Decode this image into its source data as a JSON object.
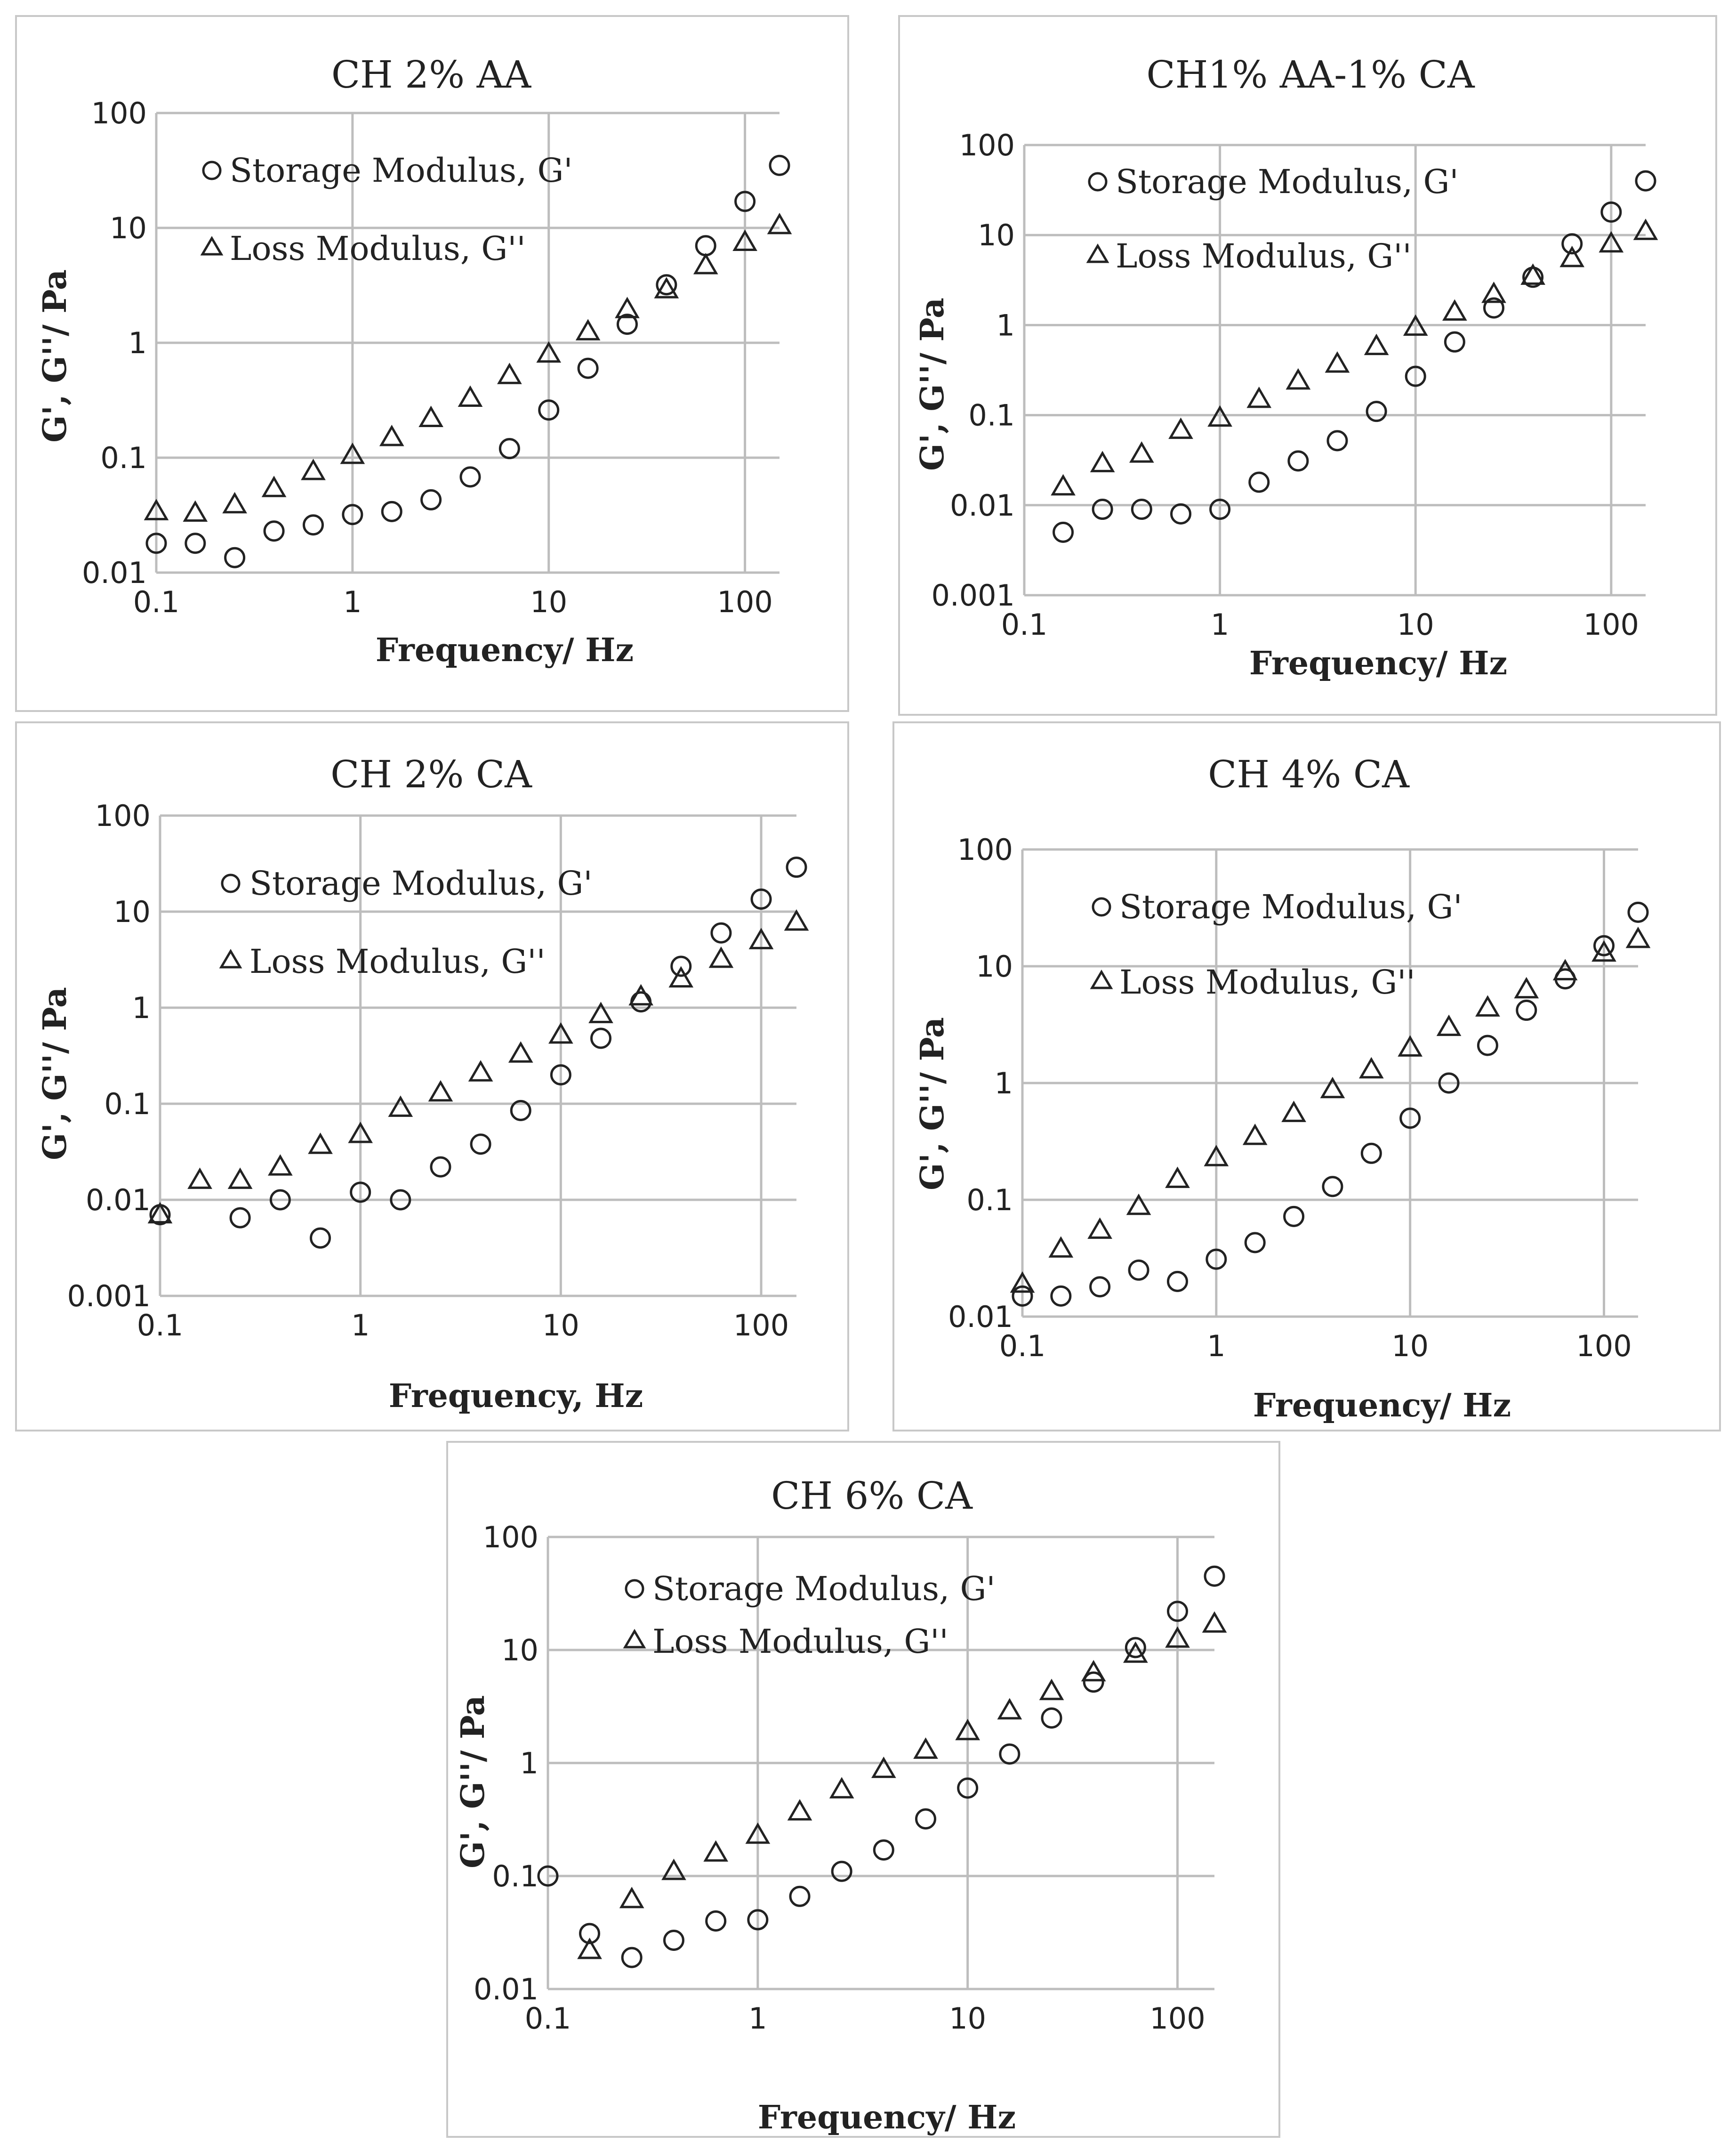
{
  "chart_data": [
    {
      "type": "scatter",
      "title": "CH 2% AA",
      "xlabel": "Frequency/ Hz",
      "ylabel": "G', G''/ Pa",
      "x_scale": "log",
      "y_scale": "log",
      "xlim": [
        0.1,
        150
      ],
      "ylim": [
        0.01,
        100
      ],
      "xticks": [
        "0.1",
        "1",
        "10",
        "100"
      ],
      "yticks": [
        "0.01",
        "0.1",
        "1",
        "10",
        "100"
      ],
      "grid": true,
      "legend": "top-left",
      "series": [
        {
          "name": "Storage Modulus, G'",
          "marker": "circle",
          "x": [
            0.1,
            0.158,
            0.251,
            0.398,
            0.631,
            1.0,
            1.585,
            2.512,
            3.981,
            6.31,
            10.0,
            15.85,
            25.12,
            39.81,
            63.1,
            100.0,
            150.0
          ],
          "y": [
            0.018,
            0.018,
            0.0135,
            0.023,
            0.026,
            0.032,
            0.034,
            0.043,
            0.068,
            0.12,
            0.26,
            0.6,
            1.45,
            3.2,
            7.0,
            17.0,
            35.0
          ]
        },
        {
          "name": "Loss Modulus, G''",
          "marker": "triangle",
          "x": [
            0.1,
            0.158,
            0.251,
            0.398,
            0.631,
            1.0,
            1.585,
            2.512,
            3.981,
            6.31,
            10.0,
            15.85,
            25.12,
            39.81,
            63.1,
            100.0,
            150.0
          ],
          "y": [
            0.034,
            0.033,
            0.039,
            0.054,
            0.076,
            0.105,
            0.15,
            0.22,
            0.33,
            0.52,
            0.8,
            1.25,
            1.95,
            2.9,
            4.7,
            7.5,
            10.5
          ]
        }
      ]
    },
    {
      "type": "scatter",
      "title": "CH1% AA-1% CA",
      "xlabel": "Frequency/ Hz",
      "ylabel": "G', G''/ Pa",
      "x_scale": "log",
      "y_scale": "log",
      "xlim": [
        0.1,
        150
      ],
      "ylim": [
        0.001,
        100
      ],
      "xticks": [
        "0.1",
        "1",
        "10",
        "100"
      ],
      "yticks": [
        "0.001",
        "0.01",
        "0.1",
        "1",
        "10",
        "100"
      ],
      "grid": true,
      "legend": "top-left",
      "series": [
        {
          "name": "Storage Modulus, G'",
          "marker": "circle",
          "x": [
            0.158,
            0.251,
            0.398,
            0.631,
            1.0,
            1.585,
            2.512,
            3.981,
            6.31,
            10.0,
            15.85,
            25.12,
            39.81,
            63.1,
            100.0,
            150.0
          ],
          "y": [
            0.005,
            0.009,
            0.009,
            0.008,
            0.009,
            0.018,
            0.031,
            0.052,
            0.11,
            0.27,
            0.65,
            1.55,
            3.4,
            8.0,
            18.0,
            40.0
          ]
        },
        {
          "name": "Loss Modulus, G''",
          "marker": "triangle",
          "x": [
            0.158,
            0.251,
            0.398,
            0.631,
            1.0,
            1.585,
            2.512,
            3.981,
            6.31,
            10.0,
            15.85,
            25.12,
            39.81,
            63.1,
            100.0,
            150.0
          ],
          "y": [
            0.016,
            0.029,
            0.037,
            0.068,
            0.093,
            0.15,
            0.24,
            0.37,
            0.58,
            0.95,
            1.4,
            2.2,
            3.5,
            5.5,
            8.0,
            11.0
          ]
        }
      ]
    },
    {
      "type": "scatter",
      "title": "CH 2% CA",
      "xlabel": "Frequency, Hz",
      "ylabel": "G', G''/ Pa",
      "x_scale": "log",
      "y_scale": "log",
      "xlim": [
        0.1,
        150
      ],
      "ylim": [
        0.001,
        100
      ],
      "xticks": [
        "0.1",
        "1",
        "10",
        "100"
      ],
      "yticks": [
        "0.001",
        "0.01",
        "0.1",
        "1",
        "10",
        "100"
      ],
      "grid": true,
      "legend": "top-left",
      "series": [
        {
          "name": "Storage Modulus, G'",
          "marker": "circle",
          "x": [
            0.1,
            0.251,
            0.398,
            0.631,
            1.0,
            1.585,
            2.512,
            3.981,
            6.31,
            10.0,
            15.85,
            25.12,
            39.81,
            63.1,
            100.0,
            150.0
          ],
          "y": [
            0.007,
            0.0065,
            0.01,
            0.004,
            0.012,
            0.01,
            0.022,
            0.038,
            0.085,
            0.2,
            0.48,
            1.15,
            2.7,
            6.0,
            13.5,
            29.0
          ]
        },
        {
          "name": "Loss Modulus, G''",
          "marker": "triangle",
          "x": [
            0.1,
            0.158,
            0.251,
            0.398,
            0.631,
            1.0,
            1.585,
            2.512,
            3.981,
            6.31,
            10.0,
            15.85,
            25.12,
            39.81,
            63.1,
            100.0,
            150.0
          ],
          "y": [
            0.007,
            0.016,
            0.016,
            0.022,
            0.037,
            0.048,
            0.09,
            0.13,
            0.21,
            0.33,
            0.52,
            0.85,
            1.3,
            2.0,
            3.2,
            5.0,
            7.8
          ]
        }
      ]
    },
    {
      "type": "scatter",
      "title": "CH 4% CA",
      "xlabel": "Frequency/ Hz",
      "ylabel": "G', G''/ Pa",
      "x_scale": "log",
      "y_scale": "log",
      "xlim": [
        0.1,
        150
      ],
      "ylim": [
        0.01,
        100
      ],
      "xticks": [
        "0.1",
        "1",
        "10",
        "100"
      ],
      "yticks": [
        "0.01",
        "0.1",
        "1",
        "10",
        "100"
      ],
      "grid": true,
      "legend": "top-left",
      "series": [
        {
          "name": "Storage Modulus, G'",
          "marker": "circle",
          "x": [
            0.1,
            0.158,
            0.251,
            0.398,
            0.631,
            1.0,
            1.585,
            2.512,
            3.981,
            6.31,
            10.0,
            15.85,
            25.12,
            39.81,
            63.1,
            100.0,
            150.0
          ],
          "y": [
            0.015,
            0.015,
            0.018,
            0.025,
            0.02,
            0.031,
            0.043,
            0.072,
            0.13,
            0.25,
            0.5,
            1.0,
            2.1,
            4.2,
            7.8,
            15.0,
            29.0
          ]
        },
        {
          "name": "Loss Modulus, G''",
          "marker": "triangle",
          "x": [
            0.1,
            0.158,
            0.251,
            0.398,
            0.631,
            1.0,
            1.585,
            2.512,
            3.981,
            6.31,
            10.0,
            15.85,
            25.12,
            39.81,
            63.1,
            100.0,
            150.0
          ],
          "y": [
            0.019,
            0.038,
            0.055,
            0.088,
            0.15,
            0.23,
            0.35,
            0.55,
            0.88,
            1.3,
            2.0,
            3.0,
            4.4,
            6.3,
            9.0,
            13.0,
            17.0
          ]
        }
      ]
    },
    {
      "type": "scatter",
      "title": "CH 6% CA",
      "xlabel": "Frequency/ Hz",
      "ylabel": "G', G''/ Pa",
      "x_scale": "log",
      "y_scale": "log",
      "xlim": [
        0.1,
        150
      ],
      "ylim": [
        0.01,
        100
      ],
      "xticks": [
        "0.1",
        "1",
        "10",
        "100"
      ],
      "yticks": [
        "0.01",
        "0.1",
        "1",
        "10",
        "100"
      ],
      "grid": true,
      "legend": "top-left",
      "series": [
        {
          "name": "Storage Modulus, G'",
          "marker": "circle",
          "x": [
            0.1,
            0.158,
            0.251,
            0.398,
            0.631,
            1.0,
            1.585,
            2.512,
            3.981,
            6.31,
            10.0,
            15.85,
            25.12,
            39.81,
            63.1,
            100.0,
            150.0
          ],
          "y": [
            0.1,
            0.031,
            0.019,
            0.027,
            0.04,
            0.041,
            0.066,
            0.11,
            0.17,
            0.32,
            0.6,
            1.2,
            2.5,
            5.2,
            10.5,
            22.0,
            45.0
          ]
        },
        {
          "name": "Loss Modulus, G''",
          "marker": "triangle",
          "x": [
            0.158,
            0.251,
            0.398,
            0.631,
            1.0,
            1.585,
            2.512,
            3.981,
            6.31,
            10.0,
            15.85,
            25.12,
            39.81,
            63.1,
            100.0,
            150.0
          ],
          "y": [
            0.022,
            0.062,
            0.11,
            0.16,
            0.23,
            0.37,
            0.58,
            0.88,
            1.3,
            1.9,
            2.9,
            4.3,
            6.3,
            9.2,
            12.5,
            17.0
          ]
        }
      ]
    }
  ]
}
